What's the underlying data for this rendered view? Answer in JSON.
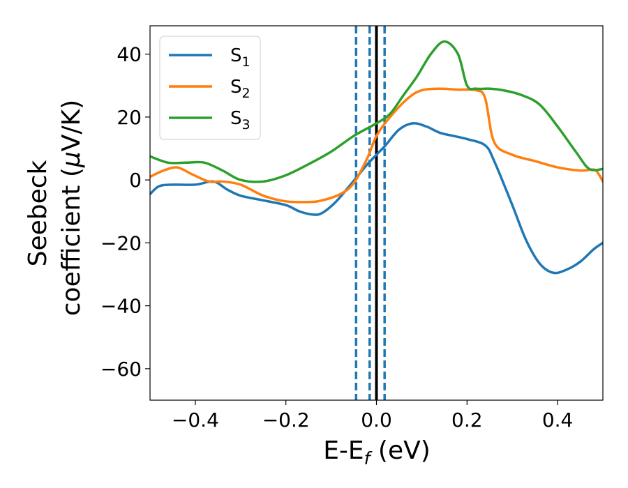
{
  "chart_data": {
    "type": "line",
    "xlabel": {
      "main": "E-E",
      "sub": "f",
      "unit": " (eV)"
    },
    "ylabel": {
      "line1": "Seebeck",
      "line2": "coefficient  (",
      "mu": "μ",
      "unit": "V/K)"
    },
    "xlim": [
      -0.5,
      0.5
    ],
    "ylim": [
      -70,
      49
    ],
    "xticks": [
      -0.4,
      -0.2,
      0.0,
      0.2,
      0.4
    ],
    "xtick_labels": [
      "−0.4",
      "−0.2",
      "0.0",
      "0.2",
      "0.4"
    ],
    "yticks": [
      40,
      20,
      0,
      -20,
      -40,
      -60
    ],
    "ytick_labels": [
      "40",
      "20",
      "0",
      "−20",
      "−40",
      "−60"
    ],
    "grid": false,
    "legend_position": "top-left",
    "vlines": [
      {
        "x": -0.045,
        "style": "dashed",
        "color": "#1f77b4"
      },
      {
        "x": -0.015,
        "style": "dashed",
        "color": "#1f77b4"
      },
      {
        "x": 0.018,
        "style": "dashed",
        "color": "#1f77b4"
      },
      {
        "x": 0.0,
        "style": "solid",
        "color": "#000000"
      }
    ],
    "series": [
      {
        "name": "S",
        "sub": "1",
        "color": "#1f77b4",
        "points": [
          [
            -0.5,
            -4.5
          ],
          [
            -0.48,
            -2
          ],
          [
            -0.45,
            -1.5
          ],
          [
            -0.4,
            -1.5
          ],
          [
            -0.36,
            -0.5
          ],
          [
            -0.33,
            -3
          ],
          [
            -0.3,
            -5
          ],
          [
            -0.25,
            -6.5
          ],
          [
            -0.2,
            -8
          ],
          [
            -0.17,
            -10
          ],
          [
            -0.14,
            -11
          ],
          [
            -0.12,
            -10.5
          ],
          [
            -0.09,
            -7
          ],
          [
            -0.06,
            -2
          ],
          [
            -0.04,
            1.5
          ],
          [
            -0.02,
            5
          ],
          [
            0.0,
            8
          ],
          [
            0.02,
            11
          ],
          [
            0.05,
            16
          ],
          [
            0.08,
            18
          ],
          [
            0.11,
            17
          ],
          [
            0.14,
            15
          ],
          [
            0.17,
            14
          ],
          [
            0.2,
            13
          ],
          [
            0.24,
            11
          ],
          [
            0.26,
            6
          ],
          [
            0.3,
            -8
          ],
          [
            0.33,
            -19
          ],
          [
            0.36,
            -26.5
          ],
          [
            0.39,
            -29.5
          ],
          [
            0.42,
            -28.5
          ],
          [
            0.45,
            -26
          ],
          [
            0.48,
            -22
          ],
          [
            0.5,
            -20
          ]
        ]
      },
      {
        "name": "S",
        "sub": "2",
        "color": "#ff7f0e",
        "points": [
          [
            -0.5,
            1
          ],
          [
            -0.47,
            3
          ],
          [
            -0.44,
            4
          ],
          [
            -0.41,
            2
          ],
          [
            -0.37,
            -0.5
          ],
          [
            -0.34,
            -0.5
          ],
          [
            -0.3,
            -1.5
          ],
          [
            -0.25,
            -5
          ],
          [
            -0.2,
            -6.8
          ],
          [
            -0.15,
            -7
          ],
          [
            -0.12,
            -6.5
          ],
          [
            -0.08,
            -4.5
          ],
          [
            -0.05,
            -1
          ],
          [
            -0.02,
            7
          ],
          [
            0.0,
            14
          ],
          [
            0.03,
            20
          ],
          [
            0.07,
            26
          ],
          [
            0.1,
            28.5
          ],
          [
            0.14,
            29
          ],
          [
            0.18,
            28.7
          ],
          [
            0.22,
            28.5
          ],
          [
            0.24,
            26
          ],
          [
            0.26,
            12
          ],
          [
            0.3,
            8
          ],
          [
            0.35,
            6
          ],
          [
            0.4,
            4
          ],
          [
            0.45,
            3
          ],
          [
            0.48,
            3.3
          ],
          [
            0.49,
            2
          ],
          [
            0.5,
            -0.5
          ]
        ]
      },
      {
        "name": "S",
        "sub": "3",
        "color": "#2ca02c",
        "points": [
          [
            -0.5,
            7.5
          ],
          [
            -0.46,
            5.5
          ],
          [
            -0.42,
            5.5
          ],
          [
            -0.38,
            5.5
          ],
          [
            -0.34,
            3
          ],
          [
            -0.3,
            0
          ],
          [
            -0.25,
            -0.5
          ],
          [
            -0.2,
            1.5
          ],
          [
            -0.15,
            5
          ],
          [
            -0.1,
            9
          ],
          [
            -0.05,
            14
          ],
          [
            0.0,
            18
          ],
          [
            0.03,
            21
          ],
          [
            0.06,
            27
          ],
          [
            0.09,
            33
          ],
          [
            0.12,
            40
          ],
          [
            0.15,
            44
          ],
          [
            0.18,
            40
          ],
          [
            0.2,
            30
          ],
          [
            0.22,
            29
          ],
          [
            0.25,
            29
          ],
          [
            0.28,
            28.5
          ],
          [
            0.32,
            27
          ],
          [
            0.36,
            24
          ],
          [
            0.4,
            17
          ],
          [
            0.44,
            9
          ],
          [
            0.47,
            3.5
          ],
          [
            0.5,
            3.5
          ]
        ]
      }
    ]
  }
}
